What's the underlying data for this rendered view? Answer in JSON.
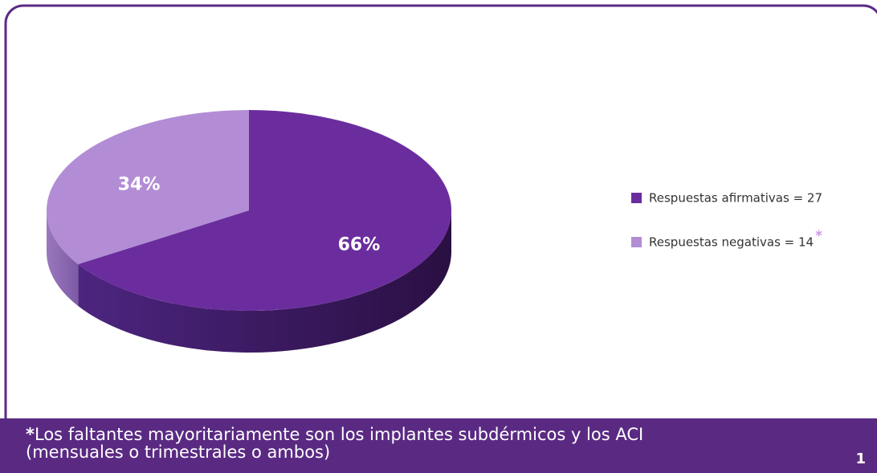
{
  "chart_data": {
    "type": "pie",
    "categories": [
      "Respuestas afirmativas = 27",
      "Respuestas negativas = 14"
    ],
    "values": [
      66,
      34
    ],
    "value_labels": [
      "66%",
      "34%"
    ],
    "colors": [
      "#6b2d9e",
      "#b28dd5"
    ],
    "legend_note": "*"
  },
  "footer": {
    "marker": "*",
    "line1": "Los faltantes mayoritariamente son los implantes subdérmicos y los ACI",
    "line2": "(mensuales o trimestrales o ambos)",
    "page": "1"
  }
}
